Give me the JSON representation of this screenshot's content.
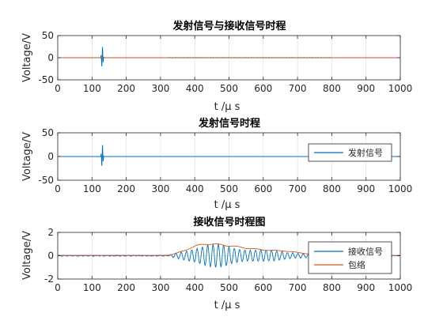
{
  "colors": {
    "blue": "#0072BD",
    "orange": "#D95319",
    "grid": "#dcdcdc",
    "axis": "#262626"
  },
  "chart_data": [
    {
      "type": "line",
      "title": "发射信号与接收信号时程",
      "xlabel": "t /μ s",
      "ylabel": "Voltage/V",
      "xlim": [
        0,
        1000
      ],
      "ylim": [
        -50,
        50
      ],
      "xticks": [
        0,
        100,
        200,
        300,
        400,
        500,
        600,
        700,
        800,
        900,
        1000
      ],
      "yticks": [
        -50,
        0,
        50
      ],
      "grid": true,
      "legend": null,
      "series": [
        {
          "color_key": "blue",
          "signal": "emit",
          "center": 130,
          "amplitude": 25
        },
        {
          "color_key": "orange",
          "signal": "receive_raw",
          "amplitude": 0.6
        }
      ]
    },
    {
      "type": "line",
      "title": "发射信号时程",
      "xlabel": "t /μ s",
      "ylabel": "Voltage/V",
      "xlim": [
        0,
        1000
      ],
      "ylim": [
        -50,
        50
      ],
      "xticks": [
        0,
        100,
        200,
        300,
        400,
        500,
        600,
        700,
        800,
        900,
        1000
      ],
      "yticks": [
        -50,
        0,
        50
      ],
      "grid": true,
      "legend": "right",
      "series": [
        {
          "name": "发射信号",
          "color_key": "blue",
          "signal": "emit",
          "center": 130,
          "amplitude": 25
        }
      ]
    },
    {
      "type": "line",
      "title": "接收信号时程图",
      "xlabel": "t /μ s",
      "ylabel": "Voltage/V",
      "xlim": [
        0,
        1000
      ],
      "ylim": [
        -2,
        2
      ],
      "xticks": [
        0,
        100,
        200,
        300,
        400,
        500,
        600,
        700,
        800,
        900,
        1000
      ],
      "yticks": [
        -2,
        0,
        2
      ],
      "grid": true,
      "legend": "right",
      "series": [
        {
          "name": "接收信号",
          "color_key": "blue",
          "signal": "receive"
        },
        {
          "name": "包络",
          "color_key": "orange",
          "signal": "envelope"
        }
      ],
      "envelope_points": [
        [
          0,
          0.03
        ],
        [
          320,
          0.03
        ],
        [
          335,
          0.12
        ],
        [
          350,
          0.25
        ],
        [
          360,
          0.35
        ],
        [
          375,
          0.5
        ],
        [
          390,
          0.7
        ],
        [
          405,
          0.85
        ],
        [
          420,
          0.95
        ],
        [
          435,
          1.02
        ],
        [
          450,
          1.0
        ],
        [
          465,
          0.97
        ],
        [
          480,
          0.93
        ],
        [
          495,
          0.88
        ],
        [
          510,
          0.82
        ],
        [
          525,
          0.76
        ],
        [
          545,
          0.68
        ],
        [
          565,
          0.6
        ],
        [
          585,
          0.55
        ],
        [
          600,
          0.5
        ],
        [
          620,
          0.46
        ],
        [
          640,
          0.44
        ],
        [
          660,
          0.42
        ],
        [
          680,
          0.35
        ],
        [
          700,
          0.28
        ],
        [
          720,
          0.2
        ],
        [
          740,
          0.13
        ],
        [
          760,
          0.08
        ],
        [
          780,
          0.05
        ],
        [
          800,
          0.03
        ],
        [
          1000,
          0.02
        ]
      ]
    }
  ]
}
